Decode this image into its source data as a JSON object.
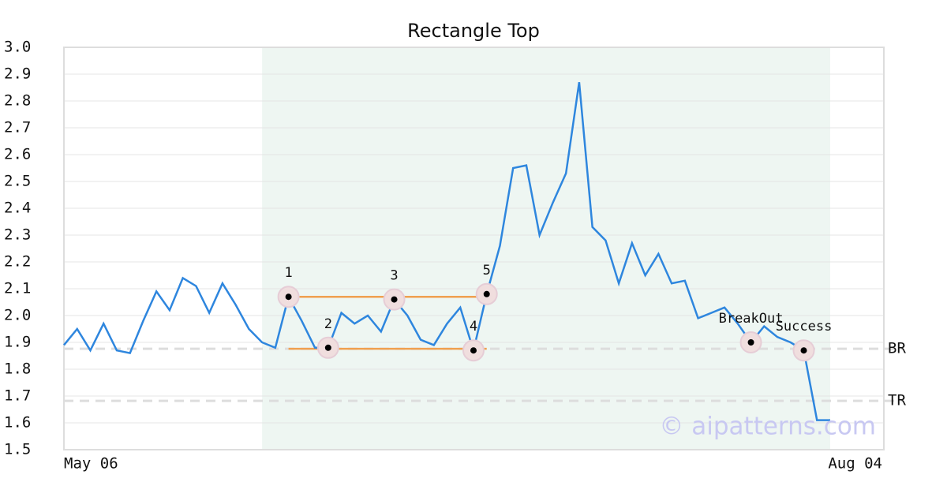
{
  "chart_data": {
    "type": "line",
    "title": "Rectangle Top",
    "categories": [
      "May 06",
      null,
      null,
      null,
      null,
      null,
      null,
      null,
      null,
      null,
      null,
      null,
      null,
      null,
      null,
      null,
      null,
      null,
      null,
      null,
      null,
      null,
      null,
      null,
      null,
      null,
      null,
      null,
      null,
      null,
      null,
      null,
      null,
      null,
      null,
      null,
      null,
      null,
      null,
      null,
      null,
      null,
      null,
      null,
      null,
      null,
      null,
      null,
      null,
      null,
      null,
      null,
      null,
      null,
      null,
      null,
      null,
      null,
      null
    ],
    "end_label": "Aug 04",
    "values": [
      1.89,
      1.95,
      1.87,
      1.97,
      1.87,
      1.86,
      1.98,
      2.09,
      2.02,
      2.14,
      2.11,
      2.01,
      2.12,
      2.04,
      1.95,
      1.9,
      1.88,
      2.07,
      1.98,
      1.88,
      1.88,
      2.01,
      1.97,
      2.0,
      1.94,
      2.06,
      2.0,
      1.91,
      1.89,
      1.97,
      2.03,
      1.87,
      2.08,
      2.26,
      2.55,
      2.56,
      2.3,
      2.42,
      2.53,
      2.87,
      2.33,
      2.28,
      2.12,
      2.27,
      2.15,
      2.23,
      2.12,
      2.13,
      1.99,
      2.01,
      2.03,
      1.97,
      1.9,
      1.96,
      1.92,
      1.9,
      1.87,
      1.61,
      1.61
    ],
    "color": "#2e86de",
    "ylim": [
      1.5,
      3.0
    ],
    "yticks": [
      1.5,
      1.6,
      1.7,
      1.8,
      1.9,
      {
        "value": 2.0,
        "label": "2.0"
      },
      2.1,
      2.2,
      2.3,
      2.4,
      2.5,
      2.6,
      2.7,
      2.8,
      2.9,
      {
        "value": 3.0,
        "label": "3.0"
      }
    ],
    "grid": true,
    "shaded_range": [
      15,
      58
    ],
    "rectangle": {
      "top": 2.07,
      "bottom": 1.876,
      "from": 17,
      "to": 32,
      "color": "#f0a050"
    },
    "levels": [
      {
        "label": "BR",
        "value": 1.876
      },
      {
        "label": "TR",
        "value": 1.682
      }
    ],
    "annotations": [
      {
        "label": "1",
        "index": 17,
        "value": 2.07
      },
      {
        "label": "2",
        "index": 20,
        "value": 1.88
      },
      {
        "label": "3",
        "index": 25,
        "value": 2.06
      },
      {
        "label": "4",
        "index": 31,
        "value": 1.87
      },
      {
        "label": "5",
        "index": 32,
        "value": 2.08
      },
      {
        "label": "BreakOut",
        "index": 52,
        "value": 1.9
      },
      {
        "label": "Success",
        "index": 56,
        "value": 1.87
      }
    ],
    "watermark": "© aipatterns.com"
  }
}
